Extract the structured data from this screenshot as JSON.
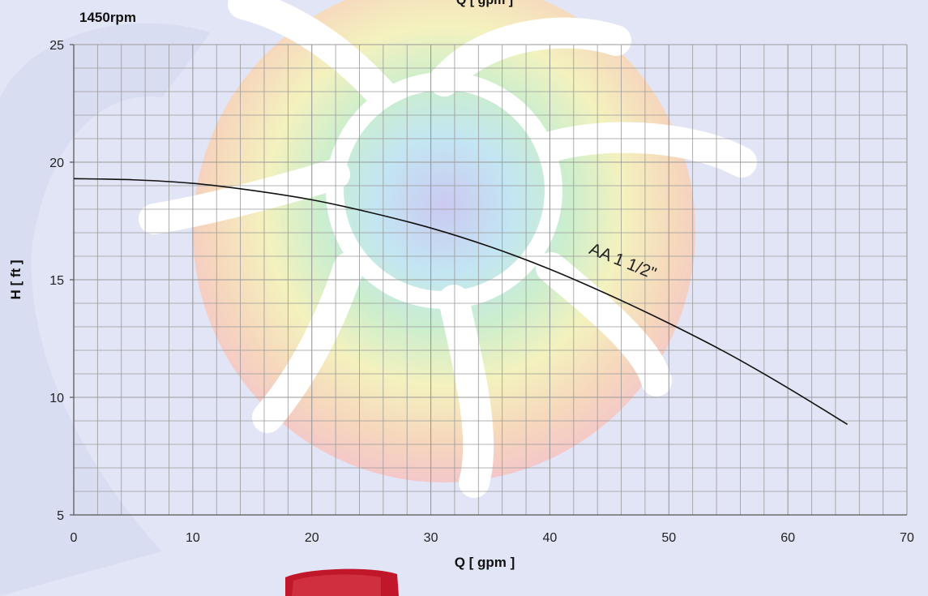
{
  "header": {
    "speed_label": "1450rpm",
    "top_axis_label": "Q [ gpm ]"
  },
  "colors": {
    "background_blue": "#e2e5f5",
    "grid": "#9a9a9a",
    "curve": "#111111",
    "impeller_white": "#ffffff",
    "brand_red": "#c0182a"
  },
  "chart_data": {
    "type": "line",
    "title": "",
    "xlabel": "Q [ gpm ]",
    "ylabel": "H [ ft ]",
    "xlim": [
      0,
      70
    ],
    "ylim": [
      5,
      25
    ],
    "x_ticks": [
      0,
      10,
      20,
      30,
      40,
      50,
      60,
      70
    ],
    "y_ticks": [
      5,
      10,
      15,
      20,
      25
    ],
    "x_minor_step": 2,
    "y_minor_step": 1,
    "grid": true,
    "series": [
      {
        "name": "AA 1 1/2\"",
        "x": [
          0,
          5,
          10,
          15,
          20,
          25,
          30,
          35,
          40,
          45,
          50,
          55,
          60,
          65
        ],
        "y": [
          19.3,
          19.25,
          19.1,
          18.8,
          18.4,
          17.85,
          17.2,
          16.4,
          15.45,
          14.35,
          13.15,
          11.85,
          10.4,
          8.85
        ]
      }
    ],
    "annotations": [
      {
        "text": "AA 1 1/2\"",
        "x": 49,
        "y": 15.1,
        "rotation_deg": 22
      }
    ]
  }
}
